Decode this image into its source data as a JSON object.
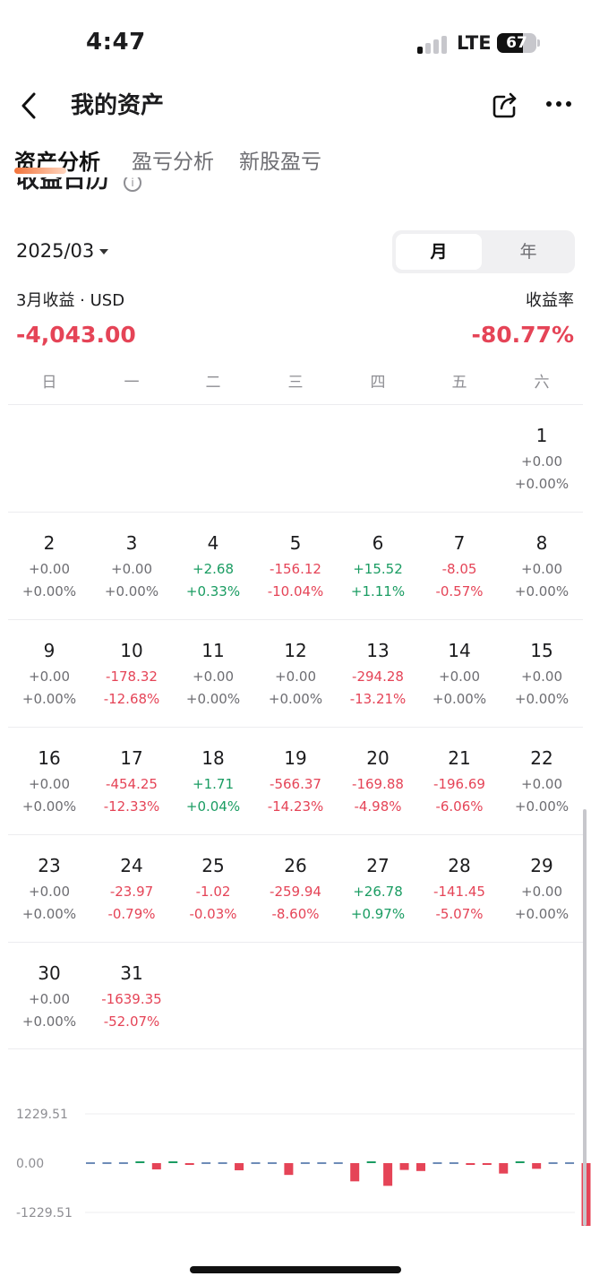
{
  "status_bar": {
    "time": "4:47",
    "network": "LTE",
    "battery": "67",
    "battery_level": 0.67
  },
  "nav": {
    "title": "我的资产"
  },
  "tabs": [
    {
      "label": "资产分析",
      "active": true
    },
    {
      "label": "盈亏分析",
      "active": false
    },
    {
      "label": "新股盈亏",
      "active": false
    }
  ],
  "section": {
    "title": "收益日历"
  },
  "month_selector": {
    "value": "2025/03"
  },
  "view_toggle": {
    "month": "月",
    "year": "年",
    "selected": "月"
  },
  "summary": {
    "income_label": "3月收益 · USD",
    "income_value": "-4,043.00",
    "rate_label": "收益率",
    "rate_value": "-80.77%"
  },
  "calendar": {
    "weekdays": [
      "日",
      "一",
      "二",
      "三",
      "四",
      "五",
      "六"
    ],
    "first_weekday_index": 6,
    "days": [
      {
        "day": "1",
        "amount": "+0.00",
        "pct": "+0.00%"
      },
      {
        "day": "2",
        "amount": "+0.00",
        "pct": "+0.00%"
      },
      {
        "day": "3",
        "amount": "+0.00",
        "pct": "+0.00%"
      },
      {
        "day": "4",
        "amount": "+2.68",
        "pct": "+0.33%"
      },
      {
        "day": "5",
        "amount": "-156.12",
        "pct": "-10.04%"
      },
      {
        "day": "6",
        "amount": "+15.52",
        "pct": "+1.11%"
      },
      {
        "day": "7",
        "amount": "-8.05",
        "pct": "-0.57%"
      },
      {
        "day": "8",
        "amount": "+0.00",
        "pct": "+0.00%"
      },
      {
        "day": "9",
        "amount": "+0.00",
        "pct": "+0.00%"
      },
      {
        "day": "10",
        "amount": "-178.32",
        "pct": "-12.68%"
      },
      {
        "day": "11",
        "amount": "+0.00",
        "pct": "+0.00%"
      },
      {
        "day": "12",
        "amount": "+0.00",
        "pct": "+0.00%"
      },
      {
        "day": "13",
        "amount": "-294.28",
        "pct": "-13.21%"
      },
      {
        "day": "14",
        "amount": "+0.00",
        "pct": "+0.00%"
      },
      {
        "day": "15",
        "amount": "+0.00",
        "pct": "+0.00%"
      },
      {
        "day": "16",
        "amount": "+0.00",
        "pct": "+0.00%"
      },
      {
        "day": "17",
        "amount": "-454.25",
        "pct": "-12.33%"
      },
      {
        "day": "18",
        "amount": "+1.71",
        "pct": "+0.04%"
      },
      {
        "day": "19",
        "amount": "-566.37",
        "pct": "-14.23%"
      },
      {
        "day": "20",
        "amount": "-169.88",
        "pct": "-4.98%"
      },
      {
        "day": "21",
        "amount": "-196.69",
        "pct": "-6.06%"
      },
      {
        "day": "22",
        "amount": "+0.00",
        "pct": "+0.00%"
      },
      {
        "day": "23",
        "amount": "+0.00",
        "pct": "+0.00%"
      },
      {
        "day": "24",
        "amount": "-23.97",
        "pct": "-0.79%"
      },
      {
        "day": "25",
        "amount": "-1.02",
        "pct": "-0.03%"
      },
      {
        "day": "26",
        "amount": "-259.94",
        "pct": "-8.60%"
      },
      {
        "day": "27",
        "amount": "+26.78",
        "pct": "+0.97%"
      },
      {
        "day": "28",
        "amount": "-141.45",
        "pct": "-5.07%"
      },
      {
        "day": "29",
        "amount": "+0.00",
        "pct": "+0.00%"
      },
      {
        "day": "30",
        "amount": "+0.00",
        "pct": "+0.00%"
      },
      {
        "day": "31",
        "amount": "-1639.35",
        "pct": "-52.07%"
      }
    ]
  },
  "colors": {
    "negative": "#e54457",
    "positive": "#1a9c62",
    "neutral": "#6d6d72",
    "zero_dash": "#4a6fa5"
  },
  "chart_data": {
    "type": "bar",
    "x": [
      1,
      2,
      3,
      4,
      5,
      6,
      7,
      8,
      9,
      10,
      11,
      12,
      13,
      14,
      15,
      16,
      17,
      18,
      19,
      20,
      21,
      22,
      23,
      24,
      25,
      26,
      27,
      28,
      29,
      30,
      31
    ],
    "values": [
      0,
      0,
      0,
      2.68,
      -156.12,
      15.52,
      -8.05,
      0,
      0,
      -178.32,
      0,
      0,
      -294.28,
      0,
      0,
      0,
      -454.25,
      1.71,
      -566.37,
      -169.88,
      -196.69,
      0,
      0,
      -23.97,
      -1.02,
      -259.94,
      26.78,
      -141.45,
      0,
      0,
      -1639.35
    ],
    "yticks": [
      "1229.51",
      "0.00",
      "-1229.51"
    ],
    "ylim": [
      -1229.51,
      1229.51
    ],
    "grid": true
  }
}
